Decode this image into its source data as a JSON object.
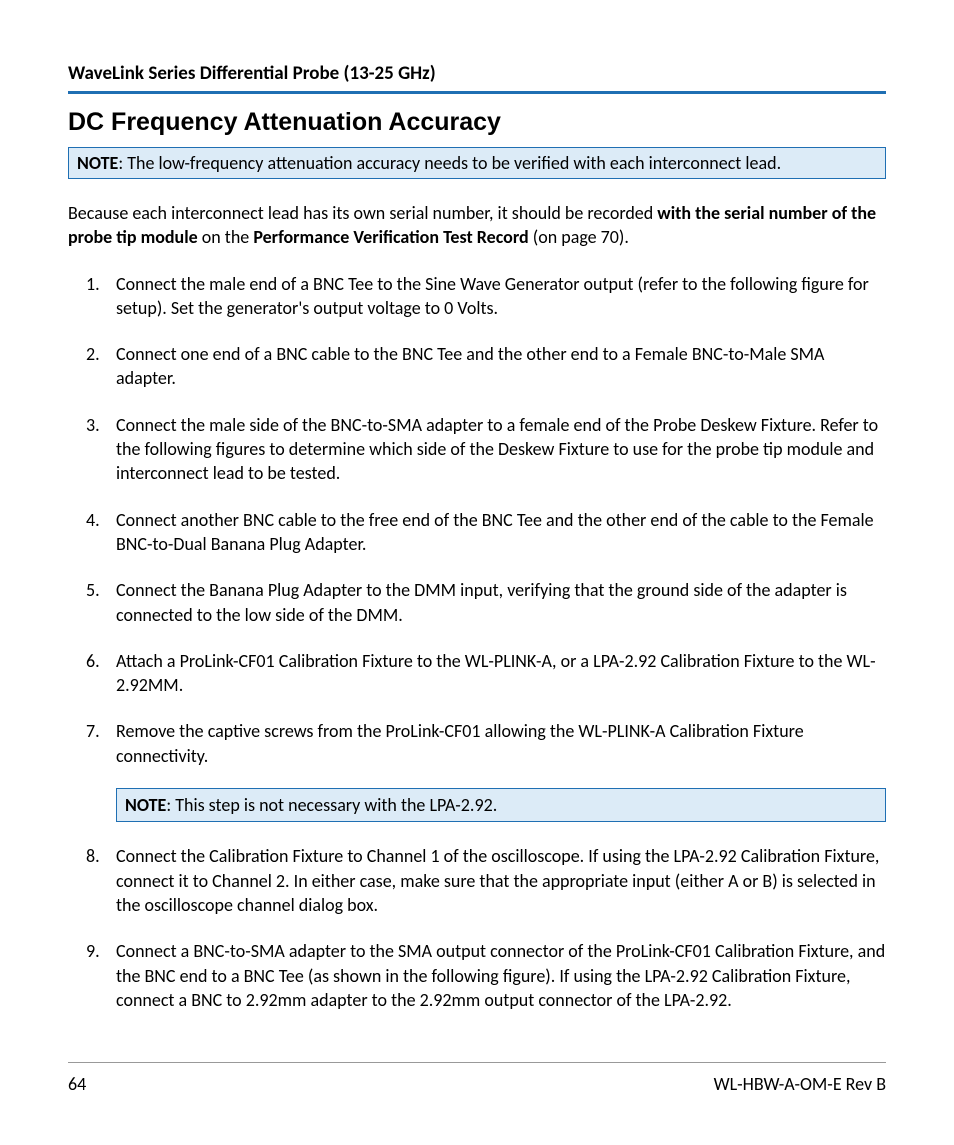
{
  "header": {
    "product_line": "WaveLink Series Differential Probe (13-25 GHz)"
  },
  "section": {
    "title": "DC Frequency Attenuation Accuracy"
  },
  "note1": {
    "label": "NOTE",
    "text": ": The low-frequency attenuation accuracy needs to be verified with each interconnect lead."
  },
  "intro": {
    "pre": "Because each interconnect lead has its own serial number, it should be recorded ",
    "bold1": "with the serial number of the probe tip module",
    "mid": " on the ",
    "bold2": "Performance Verification Test Record",
    "post": " (on page 70)."
  },
  "steps": {
    "s1": " Connect the male end of a BNC Tee to the Sine Wave Generator output (refer to the following figure for setup). Set the generator's output voltage to 0 Volts.",
    "s2": "Connect one end of a BNC cable to the BNC Tee and the other end to a Female BNC-to-Male SMA adapter.",
    "s3": "Connect the male side of the BNC-to-SMA adapter to a female end of the Probe Deskew Fixture. Refer to the following figures to determine which side of the Deskew Fixture to use for the probe tip module and interconnect lead to be tested.",
    "s4": "Connect another BNC cable to the free end of the BNC Tee and the other end of the cable to the Female BNC-to-Dual Banana Plug Adapter.",
    "s5": "Connect the Banana Plug Adapter to the DMM input, verifying that the ground side of the adapter is connected to the low side of the DMM.",
    "s6": "Attach a ProLink-CF01 Calibration Fixture to the WL-PLINK-A, or a LPA-2.92 Calibration Fixture to the WL-2.92MM.",
    "s7": "Remove the captive screws from the ProLink-CF01 allowing the WL-PLINK-A Calibration Fixture connectivity.",
    "s7_note_label": "NOTE",
    "s7_note_text": ": This step is not necessary with the LPA-2.92.",
    "s8": "Connect the Calibration Fixture to Channel 1 of the oscilloscope. If using the LPA-2.92 Calibration Fixture, connect it to Channel 2. In either case, make sure that the appropriate input (either A or B) is selected in the oscilloscope channel dialog box.",
    "s9": "Connect a BNC-to-SMA adapter to the SMA output connector of the ProLink-CF01 Calibration Fixture, and the BNC end to a BNC Tee (as shown in the following figure). If using the LPA-2.92 Calibration Fixture, connect a BNC to 2.92mm adapter to the 2.92mm output connector of the LPA-2.92."
  },
  "footer": {
    "page_number": "64",
    "doc_id": "WL-HBW-A-OM-E Rev B"
  },
  "colors": {
    "accent": "#1f6fb3",
    "note_bg": "#dcebf7",
    "text": "#000000",
    "bg": "#ffffff",
    "footer_rule": "#999999"
  }
}
